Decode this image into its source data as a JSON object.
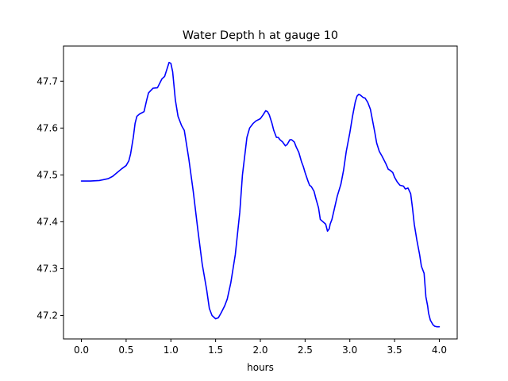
{
  "chart_data": {
    "type": "line",
    "title": "Water Depth h at gauge 10",
    "xlabel": "hours",
    "ylabel": "",
    "xlim": [
      -0.2,
      4.2
    ],
    "ylim": [
      47.15,
      47.775
    ],
    "grid": false,
    "x_ticks": [
      "0.0",
      "0.5",
      "1.0",
      "1.5",
      "2.0",
      "2.5",
      "3.0",
      "3.5",
      "4.0"
    ],
    "y_ticks": [
      "47.2",
      "47.3",
      "47.4",
      "47.5",
      "47.6",
      "47.7"
    ],
    "series": [
      {
        "color": "#0000ff",
        "x": [
          0.0,
          0.1,
          0.2,
          0.3,
          0.35,
          0.4,
          0.45,
          0.5,
          0.53,
          0.55,
          0.58,
          0.6,
          0.62,
          0.65,
          0.7,
          0.73,
          0.75,
          0.8,
          0.85,
          0.9,
          0.93,
          0.96,
          0.98,
          1.0,
          1.02,
          1.05,
          1.08,
          1.12,
          1.15,
          1.2,
          1.25,
          1.3,
          1.35,
          1.4,
          1.43,
          1.46,
          1.5,
          1.53,
          1.56,
          1.6,
          1.63,
          1.67,
          1.72,
          1.77,
          1.8,
          1.85,
          1.88,
          1.92,
          1.95,
          2.0,
          2.03,
          2.06,
          2.08,
          2.1,
          2.13,
          2.15,
          2.18,
          2.2,
          2.22,
          2.25,
          2.28,
          2.3,
          2.33,
          2.35,
          2.38,
          2.4,
          2.43,
          2.46,
          2.48,
          2.5,
          2.53,
          2.55,
          2.57,
          2.6,
          2.62,
          2.65,
          2.67,
          2.7,
          2.73,
          2.75,
          2.77,
          2.78,
          2.8,
          2.83,
          2.86,
          2.9,
          2.93,
          2.96,
          3.0,
          3.03,
          3.06,
          3.08,
          3.1,
          3.12,
          3.15,
          3.17,
          3.2,
          3.23,
          3.25,
          3.28,
          3.3,
          3.33,
          3.36,
          3.4,
          3.43,
          3.45,
          3.48,
          3.5,
          3.53,
          3.56,
          3.6,
          3.62,
          3.65,
          3.68,
          3.7,
          3.72,
          3.75,
          3.78,
          3.8,
          3.83,
          3.85,
          3.87,
          3.88,
          3.9,
          3.93,
          3.95,
          3.97,
          4.0
        ],
        "y": [
          47.487,
          47.487,
          47.488,
          47.492,
          47.497,
          47.505,
          47.513,
          47.52,
          47.53,
          47.545,
          47.58,
          47.61,
          47.625,
          47.63,
          47.635,
          47.66,
          47.675,
          47.685,
          47.686,
          47.705,
          47.71,
          47.728,
          47.74,
          47.738,
          47.72,
          47.66,
          47.625,
          47.605,
          47.595,
          47.535,
          47.465,
          47.385,
          47.31,
          47.255,
          47.215,
          47.2,
          47.193,
          47.195,
          47.205,
          47.22,
          47.235,
          47.27,
          47.33,
          47.42,
          47.5,
          47.58,
          47.6,
          47.61,
          47.615,
          47.62,
          47.628,
          47.637,
          47.635,
          47.628,
          47.61,
          47.595,
          47.58,
          47.58,
          47.575,
          47.57,
          47.562,
          47.565,
          47.575,
          47.575,
          47.57,
          47.56,
          47.548,
          47.528,
          47.518,
          47.505,
          47.488,
          47.478,
          47.475,
          47.465,
          47.45,
          47.43,
          47.405,
          47.4,
          47.395,
          47.38,
          47.385,
          47.395,
          47.405,
          47.43,
          47.455,
          47.48,
          47.51,
          47.55,
          47.59,
          47.625,
          47.655,
          47.668,
          47.672,
          47.67,
          47.665,
          47.664,
          47.655,
          47.64,
          47.62,
          47.59,
          47.568,
          47.55,
          47.54,
          47.525,
          47.512,
          47.51,
          47.505,
          47.495,
          47.485,
          47.478,
          47.476,
          47.47,
          47.472,
          47.46,
          47.43,
          47.395,
          47.36,
          47.33,
          47.305,
          47.29,
          47.24,
          47.22,
          47.205,
          47.19,
          47.18,
          47.177,
          47.176,
          47.176
        ]
      }
    ]
  }
}
